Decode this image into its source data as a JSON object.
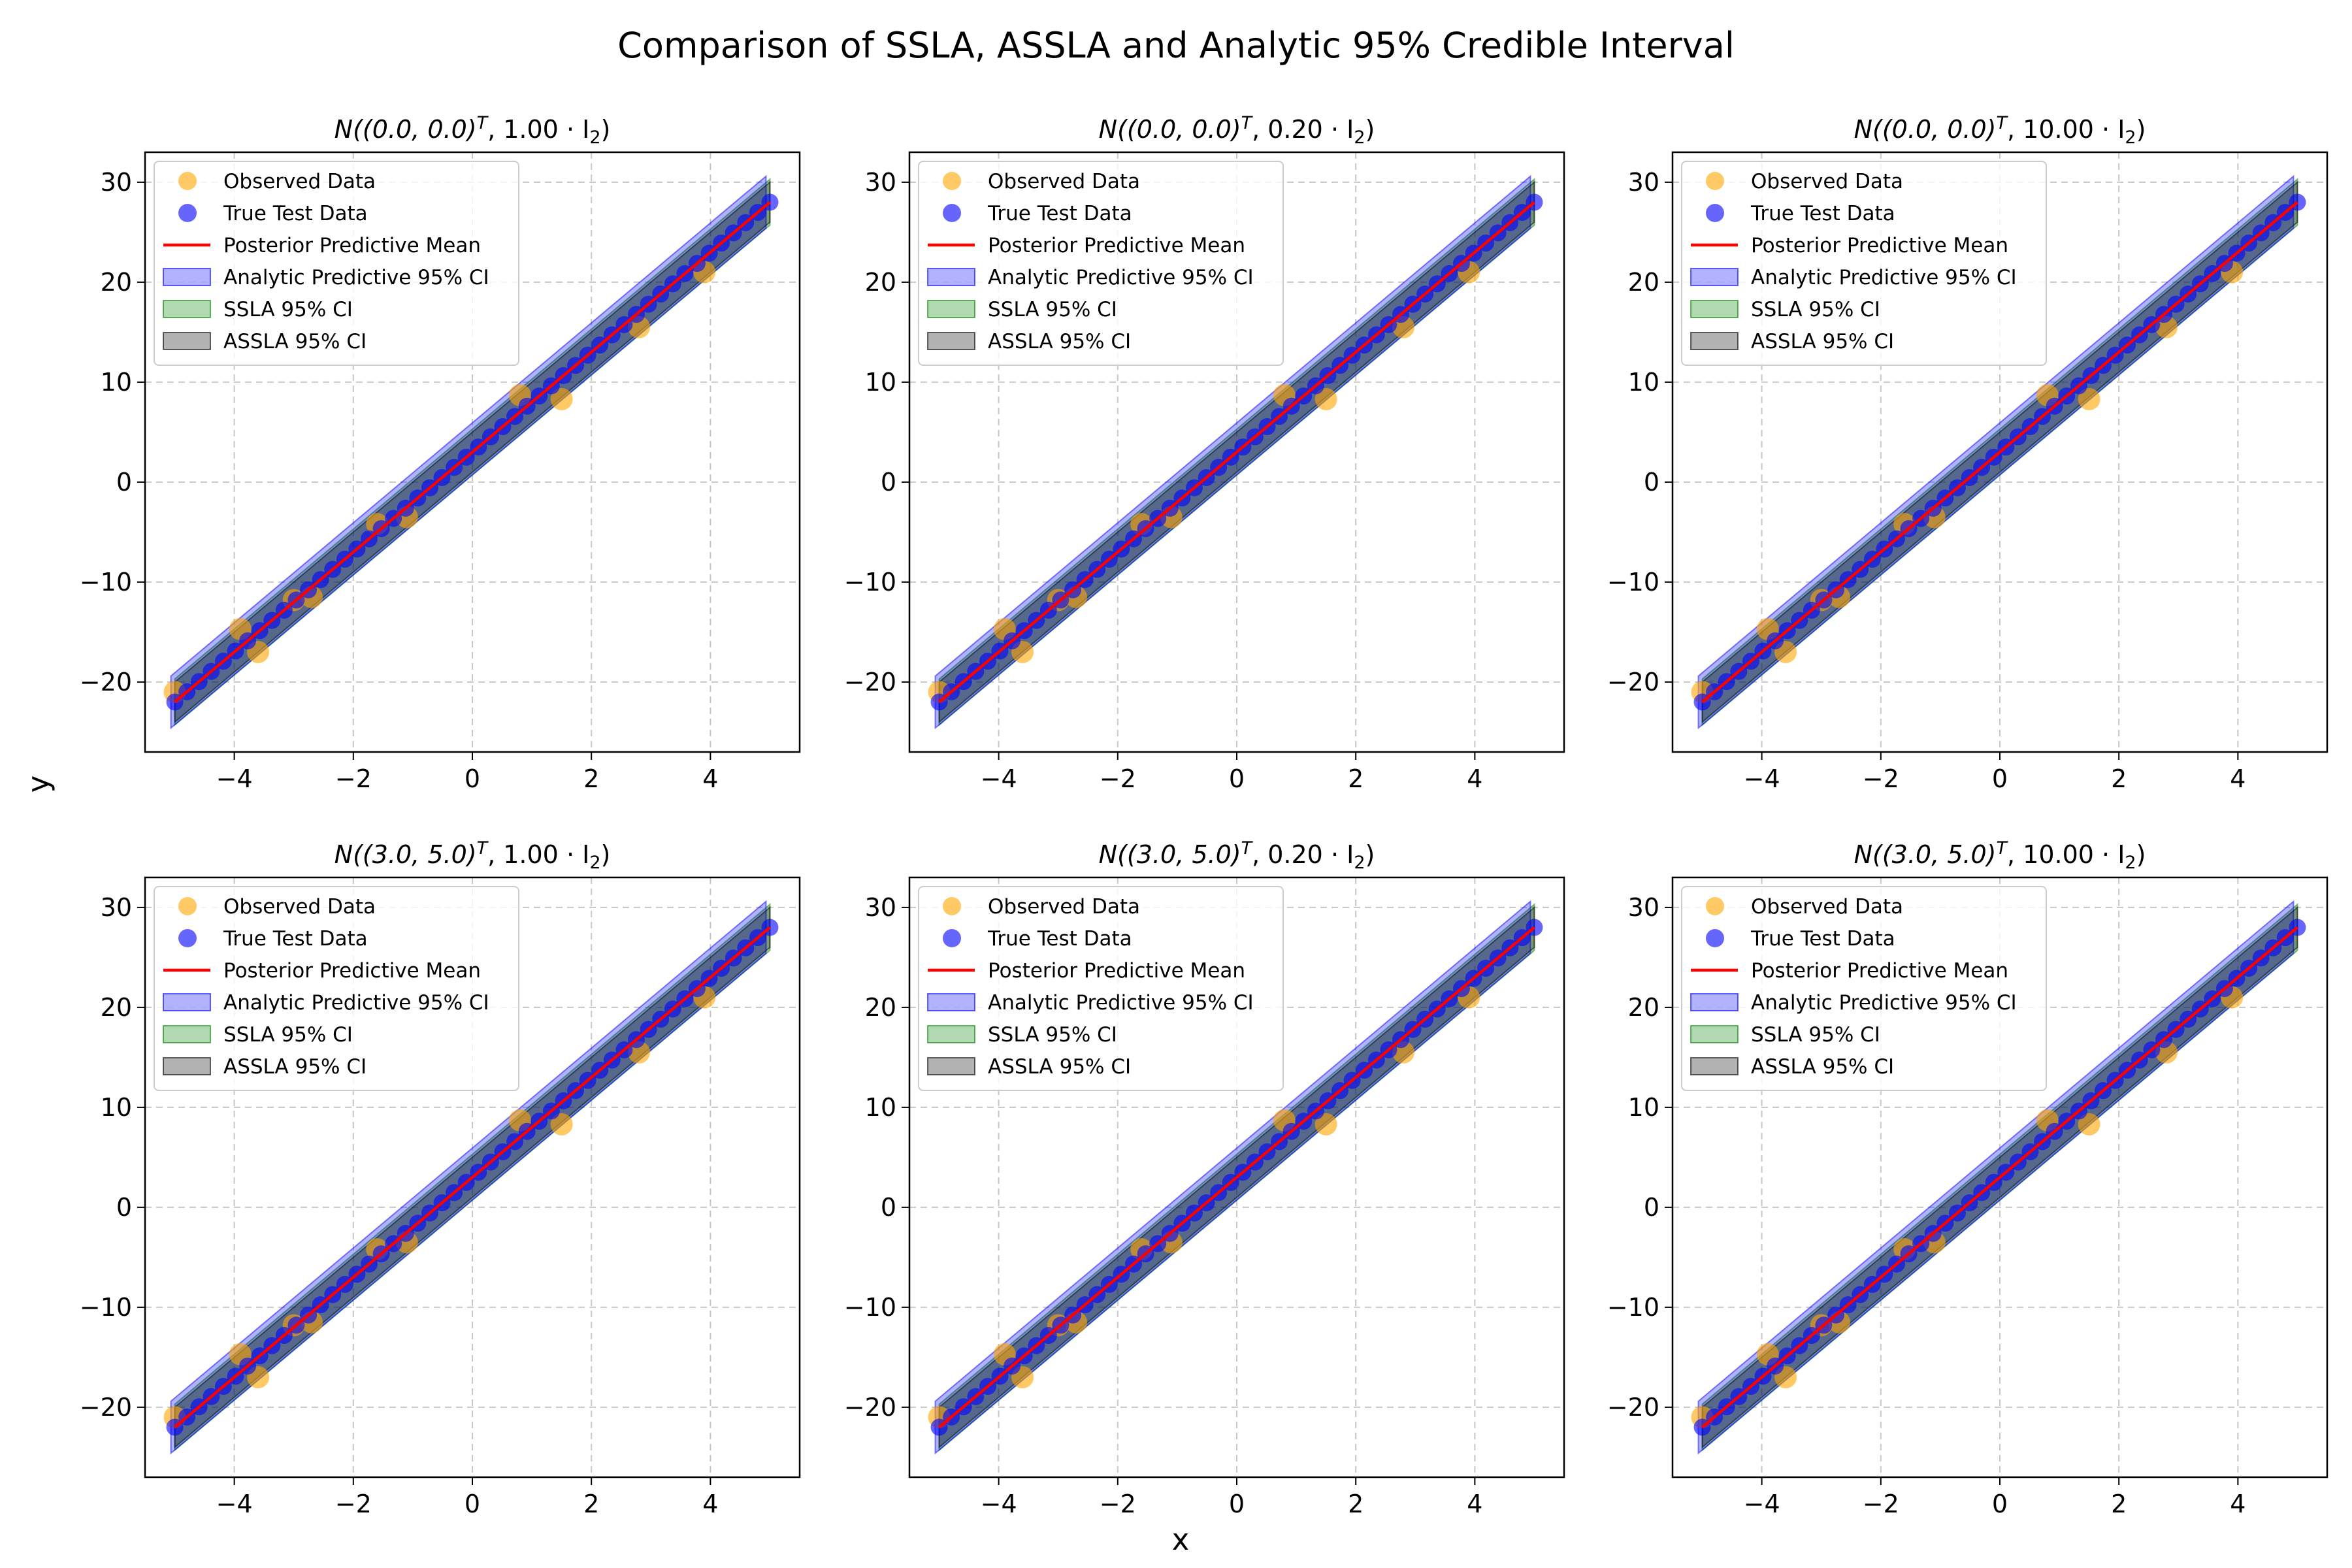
{
  "figure": {
    "suptitle": "Comparison of SSLA, ASSLA and Analytic 95% Credible Interval",
    "xlabel": "x",
    "ylabel": "y"
  },
  "colors": {
    "observed": "#FFA500",
    "test": "#0000FF",
    "mean": "#FF0000",
    "analytic_ci": "#0000FF",
    "ssla_ci": "#008000",
    "assla_ci": "#000000",
    "grid": "#b0b0b0"
  },
  "legend": [
    "Observed Data",
    "True Test Data",
    "Posterior Predictive Mean",
    "Analytic Predictive 95% CI",
    "SSLA 95% CI",
    "ASSLA 95% CI"
  ],
  "chart_data": [
    {
      "type": "line",
      "title": "N((0.0, 0.0)ᵀ, 1.00 · I₂)",
      "title_parts": {
        "pre": "N((0.0, 0.0)",
        "sup": "T",
        "mid": ", 1.00 · I",
        "sub": "2",
        "post": ")"
      },
      "xlim": [
        -5.5,
        5.5
      ],
      "ylim": [
        -27,
        33
      ],
      "xticks": [
        -4,
        -2,
        0,
        2,
        4
      ],
      "xtick_labels": [
        "−4",
        "−2",
        "0",
        "2",
        "4"
      ],
      "yticks": [
        -20,
        -10,
        0,
        10,
        20,
        30
      ],
      "ytick_labels": [
        "−20",
        "−10",
        "0",
        "10",
        "20",
        "30"
      ],
      "grid": true,
      "legend_position": "upper-left",
      "mean": {
        "x": [
          -5,
          5
        ],
        "y": [
          -22,
          28
        ]
      },
      "ci_halfwidth": {
        "analytic": 2.6,
        "ssla": 2.3,
        "assla": 2.0
      },
      "observed": {
        "x": [
          -5.0,
          -3.9,
          -3.6,
          -3.0,
          -2.7,
          -1.6,
          -1.1,
          0.8,
          1.5,
          2.8,
          3.9
        ],
        "y": [
          -21.0,
          -14.7,
          -17.0,
          -11.8,
          -11.5,
          -4.2,
          -3.5,
          8.7,
          8.3,
          15.5,
          21.0
        ]
      },
      "test": {
        "x_range": [
          -5,
          5
        ],
        "n": 50,
        "slope": 5,
        "intercept": 3
      }
    },
    {
      "type": "line",
      "title": "N((0.0, 0.0)ᵀ, 0.20 · I₂)",
      "title_parts": {
        "pre": "N((0.0, 0.0)",
        "sup": "T",
        "mid": ", 0.20 · I",
        "sub": "2",
        "post": ")"
      },
      "xlim": [
        -5.5,
        5.5
      ],
      "ylim": [
        -27,
        33
      ],
      "xticks": [
        -4,
        -2,
        0,
        2,
        4
      ],
      "xtick_labels": [
        "−4",
        "−2",
        "0",
        "2",
        "4"
      ],
      "yticks": [
        -20,
        -10,
        0,
        10,
        20,
        30
      ],
      "ytick_labels": [
        "−20",
        "−10",
        "0",
        "10",
        "20",
        "30"
      ],
      "grid": true,
      "legend_position": "upper-left",
      "mean": {
        "x": [
          -5,
          5
        ],
        "y": [
          -22,
          28
        ]
      },
      "ci_halfwidth": {
        "analytic": 2.6,
        "ssla": 2.3,
        "assla": 2.0
      },
      "observed": {
        "x": [
          -5.0,
          -3.9,
          -3.6,
          -3.0,
          -2.7,
          -1.6,
          -1.1,
          0.8,
          1.5,
          2.8,
          3.9
        ],
        "y": [
          -21.0,
          -14.7,
          -17.0,
          -11.8,
          -11.5,
          -4.2,
          -3.5,
          8.7,
          8.3,
          15.5,
          21.0
        ]
      },
      "test": {
        "x_range": [
          -5,
          5
        ],
        "n": 50,
        "slope": 5,
        "intercept": 3
      }
    },
    {
      "type": "line",
      "title": "N((0.0, 0.0)ᵀ, 10.00 · I₂)",
      "title_parts": {
        "pre": "N((0.0, 0.0)",
        "sup": "T",
        "mid": ", 10.00 · I",
        "sub": "2",
        "post": ")"
      },
      "xlim": [
        -5.5,
        5.5
      ],
      "ylim": [
        -27,
        33
      ],
      "xticks": [
        -4,
        -2,
        0,
        2,
        4
      ],
      "xtick_labels": [
        "−4",
        "−2",
        "0",
        "2",
        "4"
      ],
      "yticks": [
        -20,
        -10,
        0,
        10,
        20,
        30
      ],
      "ytick_labels": [
        "−20",
        "−10",
        "0",
        "10",
        "20",
        "30"
      ],
      "grid": true,
      "legend_position": "upper-left",
      "mean": {
        "x": [
          -5,
          5
        ],
        "y": [
          -22,
          28
        ]
      },
      "ci_halfwidth": {
        "analytic": 2.6,
        "ssla": 2.3,
        "assla": 2.0
      },
      "observed": {
        "x": [
          -5.0,
          -3.9,
          -3.6,
          -3.0,
          -2.7,
          -1.6,
          -1.1,
          0.8,
          1.5,
          2.8,
          3.9
        ],
        "y": [
          -21.0,
          -14.7,
          -17.0,
          -11.8,
          -11.5,
          -4.2,
          -3.5,
          8.7,
          8.3,
          15.5,
          21.0
        ]
      },
      "test": {
        "x_range": [
          -5,
          5
        ],
        "n": 50,
        "slope": 5,
        "intercept": 3
      }
    },
    {
      "type": "line",
      "title": "N((3.0, 5.0)ᵀ, 1.00 · I₂)",
      "title_parts": {
        "pre": "N((3.0, 5.0)",
        "sup": "T",
        "mid": ", 1.00 · I",
        "sub": "2",
        "post": ")"
      },
      "xlim": [
        -5.5,
        5.5
      ],
      "ylim": [
        -27,
        33
      ],
      "xticks": [
        -4,
        -2,
        0,
        2,
        4
      ],
      "xtick_labels": [
        "−4",
        "−2",
        "0",
        "2",
        "4"
      ],
      "yticks": [
        -20,
        -10,
        0,
        10,
        20,
        30
      ],
      "ytick_labels": [
        "−20",
        "−10",
        "0",
        "10",
        "20",
        "30"
      ],
      "grid": true,
      "legend_position": "upper-left",
      "mean": {
        "x": [
          -5,
          5
        ],
        "y": [
          -22,
          28
        ]
      },
      "ci_halfwidth": {
        "analytic": 2.6,
        "ssla": 2.3,
        "assla": 2.0
      },
      "observed": {
        "x": [
          -5.0,
          -3.9,
          -3.6,
          -3.0,
          -2.7,
          -1.6,
          -1.1,
          0.8,
          1.5,
          2.8,
          3.9
        ],
        "y": [
          -21.0,
          -14.7,
          -17.0,
          -11.8,
          -11.5,
          -4.2,
          -3.5,
          8.7,
          8.3,
          15.5,
          21.0
        ]
      },
      "test": {
        "x_range": [
          -5,
          5
        ],
        "n": 50,
        "slope": 5,
        "intercept": 3
      }
    },
    {
      "type": "line",
      "title": "N((3.0, 5.0)ᵀ, 0.20 · I₂)",
      "title_parts": {
        "pre": "N((3.0, 5.0)",
        "sup": "T",
        "mid": ", 0.20 · I",
        "sub": "2",
        "post": ")"
      },
      "xlim": [
        -5.5,
        5.5
      ],
      "ylim": [
        -27,
        33
      ],
      "xticks": [
        -4,
        -2,
        0,
        2,
        4
      ],
      "xtick_labels": [
        "−4",
        "−2",
        "0",
        "2",
        "4"
      ],
      "yticks": [
        -20,
        -10,
        0,
        10,
        20,
        30
      ],
      "ytick_labels": [
        "−20",
        "−10",
        "0",
        "10",
        "20",
        "30"
      ],
      "grid": true,
      "legend_position": "upper-left",
      "mean": {
        "x": [
          -5,
          5
        ],
        "y": [
          -22,
          28
        ]
      },
      "ci_halfwidth": {
        "analytic": 2.6,
        "ssla": 2.3,
        "assla": 2.0
      },
      "observed": {
        "x": [
          -5.0,
          -3.9,
          -3.6,
          -3.0,
          -2.7,
          -1.6,
          -1.1,
          0.8,
          1.5,
          2.8,
          3.9
        ],
        "y": [
          -21.0,
          -14.7,
          -17.0,
          -11.8,
          -11.5,
          -4.2,
          -3.5,
          8.7,
          8.3,
          15.5,
          21.0
        ]
      },
      "test": {
        "x_range": [
          -5,
          5
        ],
        "n": 50,
        "slope": 5,
        "intercept": 3
      }
    },
    {
      "type": "line",
      "title": "N((3.0, 5.0)ᵀ, 10.00 · I₂)",
      "title_parts": {
        "pre": "N((3.0, 5.0)",
        "sup": "T",
        "mid": ", 10.00 · I",
        "sub": "2",
        "post": ")"
      },
      "xlim": [
        -5.5,
        5.5
      ],
      "ylim": [
        -27,
        33
      ],
      "xticks": [
        -4,
        -2,
        0,
        2,
        4
      ],
      "xtick_labels": [
        "−4",
        "−2",
        "0",
        "2",
        "4"
      ],
      "yticks": [
        -20,
        -10,
        0,
        10,
        20,
        30
      ],
      "ytick_labels": [
        "−20",
        "−10",
        "0",
        "10",
        "20",
        "30"
      ],
      "grid": true,
      "legend_position": "upper-left",
      "mean": {
        "x": [
          -5,
          5
        ],
        "y": [
          -22,
          28
        ]
      },
      "ci_halfwidth": {
        "analytic": 2.6,
        "ssla": 2.3,
        "assla": 2.0
      },
      "observed": {
        "x": [
          -5.0,
          -3.9,
          -3.6,
          -3.0,
          -2.7,
          -1.6,
          -1.1,
          0.8,
          1.5,
          2.8,
          3.9
        ],
        "y": [
          -21.0,
          -14.7,
          -17.0,
          -11.8,
          -11.5,
          -4.2,
          -3.5,
          8.7,
          8.3,
          15.5,
          21.0
        ]
      },
      "test": {
        "x_range": [
          -5,
          5
        ],
        "n": 50,
        "slope": 5,
        "intercept": 3
      }
    }
  ]
}
